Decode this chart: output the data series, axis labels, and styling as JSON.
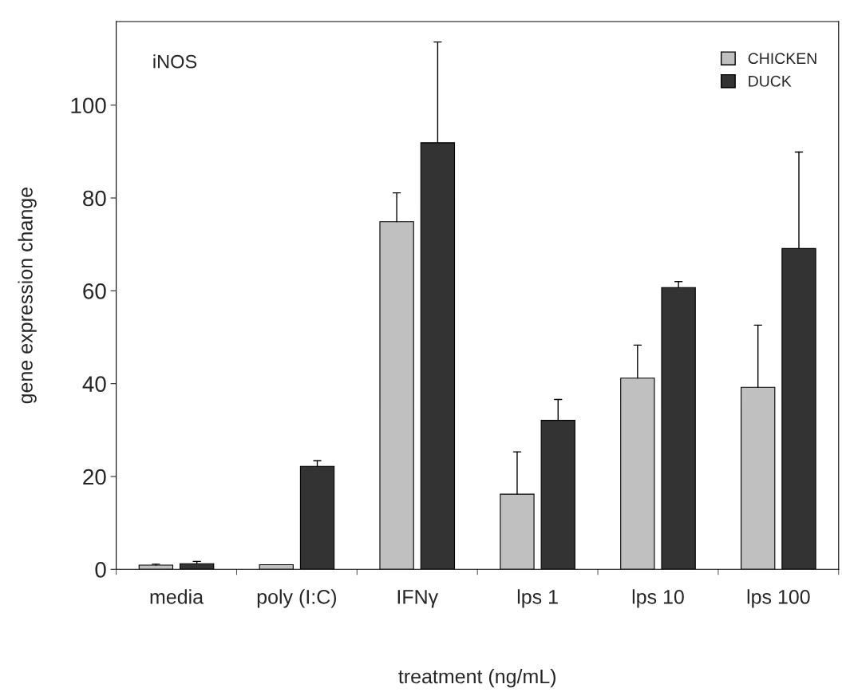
{
  "chart_data": {
    "type": "bar",
    "xlabel": "treatment (ng/mL)",
    "ylabel": "gene expression change",
    "categories": [
      "media",
      "poly (I:C)",
      "IFNγ",
      "lps 1",
      "lps 10",
      "lps 100"
    ],
    "series": [
      {
        "name": "CHICKEN",
        "color": "#c0c0c0",
        "values": [
          0.9,
          1.0,
          74.9,
          16.2,
          41.2,
          39.2
        ],
        "errors": [
          [
            0.9,
            1.1
          ],
          null,
          [
            74.9,
            81.1
          ],
          [
            16.2,
            25.3
          ],
          [
            41.2,
            48.3
          ],
          [
            39.2,
            52.6
          ]
        ]
      },
      {
        "name": "DUCK",
        "color": "#333333",
        "values": [
          1.2,
          22.2,
          91.9,
          32.1,
          60.7,
          69.1
        ],
        "errors": [
          [
            1.2,
            1.7
          ],
          [
            22.2,
            23.4
          ],
          [
            91.9,
            113.6
          ],
          [
            32.1,
            36.6
          ],
          [
            60.7,
            62.0
          ],
          [
            69.1,
            89.9
          ]
        ]
      }
    ],
    "ylim": [
      0,
      118
    ],
    "yticks": [
      0,
      20,
      40,
      60,
      80,
      100
    ],
    "grid": false,
    "legend": "top right",
    "annotations": [
      "iNOS"
    ]
  }
}
